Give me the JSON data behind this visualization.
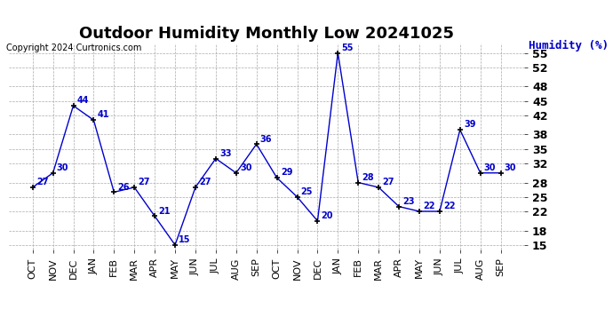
{
  "title": "Outdoor Humidity Monthly Low 20241025",
  "copyright": "Copyright 2024 Curtronics.com",
  "ylabel": "Humidity (%)",
  "categories": [
    "OCT",
    "NOV",
    "DEC",
    "JAN",
    "FEB",
    "MAR",
    "APR",
    "MAY",
    "JUN",
    "JUL",
    "AUG",
    "SEP",
    "OCT",
    "NOV",
    "DEC",
    "JAN",
    "FEB",
    "MAR",
    "APR",
    "MAY",
    "JUN",
    "JUL",
    "AUG",
    "SEP"
  ],
  "values": [
    27,
    30,
    44,
    41,
    26,
    27,
    21,
    15,
    27,
    33,
    30,
    36,
    29,
    25,
    20,
    55,
    28,
    27,
    23,
    22,
    22,
    39,
    30,
    30
  ],
  "ylim": [
    14,
    57
  ],
  "yticks": [
    15,
    18,
    22,
    25,
    28,
    32,
    35,
    38,
    42,
    45,
    48,
    52,
    55
  ],
  "line_color": "#0000cc",
  "marker_color": "#000000",
  "bg_color": "#ffffff",
  "grid_color": "#aaaaaa",
  "title_fontsize": 13,
  "label_fontsize": 8,
  "annotation_fontsize": 7,
  "copyright_fontsize": 7,
  "ylabel_fontsize": 9,
  "ylabel_color": "#0000cc"
}
